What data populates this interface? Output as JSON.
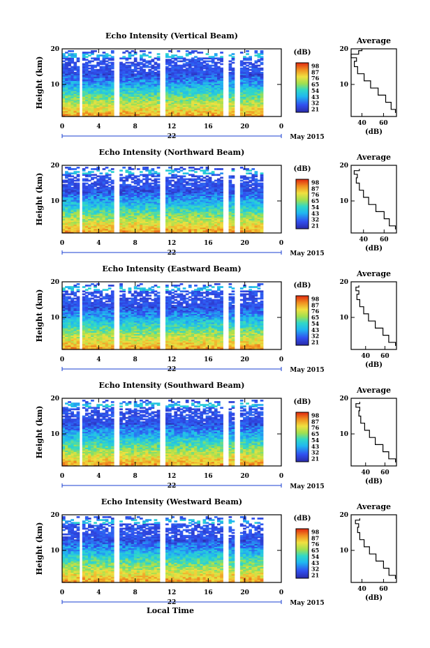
{
  "figure": {
    "xlabel": "Local Time",
    "date_label": "May 2015",
    "day_label": "22",
    "colorbar_unit": "(dB)",
    "colorbar_ticks": [
      "98",
      "87",
      "76",
      "65",
      "54",
      "43",
      "32",
      "21"
    ]
  },
  "chart_data": [
    {
      "type": "heatmap",
      "title": "Echo Intensity (Vertical Beam)",
      "ylabel": "Height (km)",
      "xlabel": "Local Time",
      "x_ticks": [
        "0",
        "4",
        "8",
        "12",
        "16",
        "20",
        "0"
      ],
      "y_ticks": [
        "20",
        "10"
      ],
      "xlim": [
        0,
        24
      ],
      "ylim": [
        1,
        20
      ],
      "data_gaps_hours": [
        [
          1.8,
          2.2
        ],
        [
          5.8,
          6.2
        ],
        [
          10.8,
          11.4
        ],
        [
          17.7,
          18.1
        ],
        [
          19.0,
          19.4
        ]
      ],
      "colorscale": {
        "label": "(dB)",
        "ticks": [
          98,
          87,
          76,
          65,
          54,
          43,
          32,
          21
        ]
      },
      "profile": {
        "title": "Average",
        "xlabel": "(dB)",
        "x_ticks": [
          "40",
          "60"
        ],
        "xlim": [
          30,
          72
        ],
        "height_km": [
          2,
          4,
          6,
          8,
          10,
          12,
          14,
          16,
          17,
          18,
          19,
          20
        ],
        "mean_db": [
          71,
          67,
          62,
          55,
          48,
          42,
          36,
          33,
          35,
          30,
          37,
          40
        ]
      }
    },
    {
      "type": "heatmap",
      "title": "Echo Intensity (Northward Beam)",
      "ylabel": "Height (km)",
      "xlabel": "Local Time",
      "x_ticks": [
        "0",
        "4",
        "8",
        "12",
        "16",
        "20",
        "0"
      ],
      "y_ticks": [
        "20",
        "10"
      ],
      "xlim": [
        0,
        24
      ],
      "ylim": [
        1,
        20
      ],
      "data_gaps_hours": [
        [
          1.8,
          2.2
        ],
        [
          5.8,
          6.2
        ],
        [
          10.8,
          11.4
        ],
        [
          17.7,
          18.1
        ],
        [
          19.0,
          19.4
        ]
      ],
      "colorscale": {
        "label": "(dB)",
        "ticks": [
          98,
          87,
          76,
          65,
          54,
          43,
          32,
          21
        ]
      },
      "profile": {
        "title": "Average",
        "xlabel": "(dB)",
        "x_ticks": [
          "40",
          "60"
        ],
        "xlim": [
          28,
          72
        ],
        "height_km": [
          2,
          4,
          6,
          8,
          10,
          12,
          14,
          16,
          17,
          18,
          19
        ],
        "mean_db": [
          71,
          65,
          60,
          52,
          45,
          40,
          36,
          33,
          34,
          31,
          36
        ]
      }
    },
    {
      "type": "heatmap",
      "title": "Echo Intensity (Eastward Beam)",
      "ylabel": "Height (km)",
      "xlabel": "Local Time",
      "x_ticks": [
        "0",
        "4",
        "8",
        "12",
        "16",
        "20",
        "0"
      ],
      "y_ticks": [
        "20",
        "10"
      ],
      "xlim": [
        0,
        24
      ],
      "ylim": [
        1,
        20
      ],
      "data_gaps_hours": [
        [
          1.8,
          2.2
        ],
        [
          5.8,
          6.2
        ],
        [
          10.8,
          11.4
        ],
        [
          17.7,
          18.1
        ],
        [
          19.0,
          19.4
        ]
      ],
      "colorscale": {
        "label": "(dB)",
        "ticks": [
          98,
          87,
          76,
          65,
          54,
          43,
          32,
          21
        ]
      },
      "profile": {
        "title": "Average",
        "xlabel": "(dB)",
        "x_ticks": [
          "40",
          "60"
        ],
        "xlim": [
          25,
          72
        ],
        "height_km": [
          2,
          4,
          6,
          8,
          10,
          12,
          14,
          16,
          17,
          18,
          19
        ],
        "mean_db": [
          71,
          64,
          58,
          50,
          43,
          38,
          34,
          31,
          33,
          30,
          33
        ]
      }
    },
    {
      "type": "heatmap",
      "title": "Echo Intensity (Southward Beam)",
      "ylabel": "Height (km)",
      "xlabel": "Local Time",
      "x_ticks": [
        "0",
        "4",
        "8",
        "12",
        "16",
        "20",
        "0"
      ],
      "y_ticks": [
        "20",
        "10"
      ],
      "xlim": [
        0,
        24
      ],
      "ylim": [
        1,
        20
      ],
      "data_gaps_hours": [
        [
          1.8,
          2.2
        ],
        [
          5.8,
          6.2
        ],
        [
          10.8,
          11.4
        ],
        [
          17.7,
          18.1
        ],
        [
          19.0,
          19.4
        ]
      ],
      "colorscale": {
        "label": "(dB)",
        "ticks": [
          98,
          87,
          76,
          65,
          54,
          43,
          32,
          21
        ]
      },
      "profile": {
        "title": "Average",
        "xlabel": "(dB)",
        "x_ticks": [
          "40",
          "60"
        ],
        "xlim": [
          25,
          72
        ],
        "height_km": [
          2,
          4,
          6,
          8,
          10,
          12,
          14,
          16,
          17,
          18,
          19
        ],
        "mean_db": [
          71,
          64,
          58,
          50,
          44,
          39,
          35,
          33,
          34,
          30,
          34
        ]
      }
    },
    {
      "type": "heatmap",
      "title": "Echo Intensity (Westward Beam)",
      "ylabel": "Height (km)",
      "xlabel": "Local Time",
      "x_ticks": [
        "0",
        "4",
        "8",
        "12",
        "16",
        "20",
        "0"
      ],
      "y_ticks": [
        "20",
        "10"
      ],
      "xlim": [
        0,
        24
      ],
      "ylim": [
        1,
        20
      ],
      "data_gaps_hours": [
        [
          1.8,
          2.2
        ],
        [
          5.8,
          6.2
        ],
        [
          10.8,
          11.4
        ],
        [
          17.7,
          18.1
        ],
        [
          19.0,
          19.4
        ]
      ],
      "colorscale": {
        "label": "(dB)",
        "ticks": [
          98,
          87,
          76,
          65,
          54,
          43,
          32,
          21
        ]
      },
      "profile": {
        "title": "Average",
        "xlabel": "(dB)",
        "x_ticks": [
          "40",
          "60"
        ],
        "xlim": [
          30,
          72
        ],
        "height_km": [
          2,
          4,
          6,
          8,
          10,
          12,
          14,
          16,
          17,
          18,
          19
        ],
        "mean_db": [
          71,
          65,
          60,
          53,
          47,
          42,
          38,
          36,
          37,
          34,
          38
        ]
      }
    }
  ]
}
